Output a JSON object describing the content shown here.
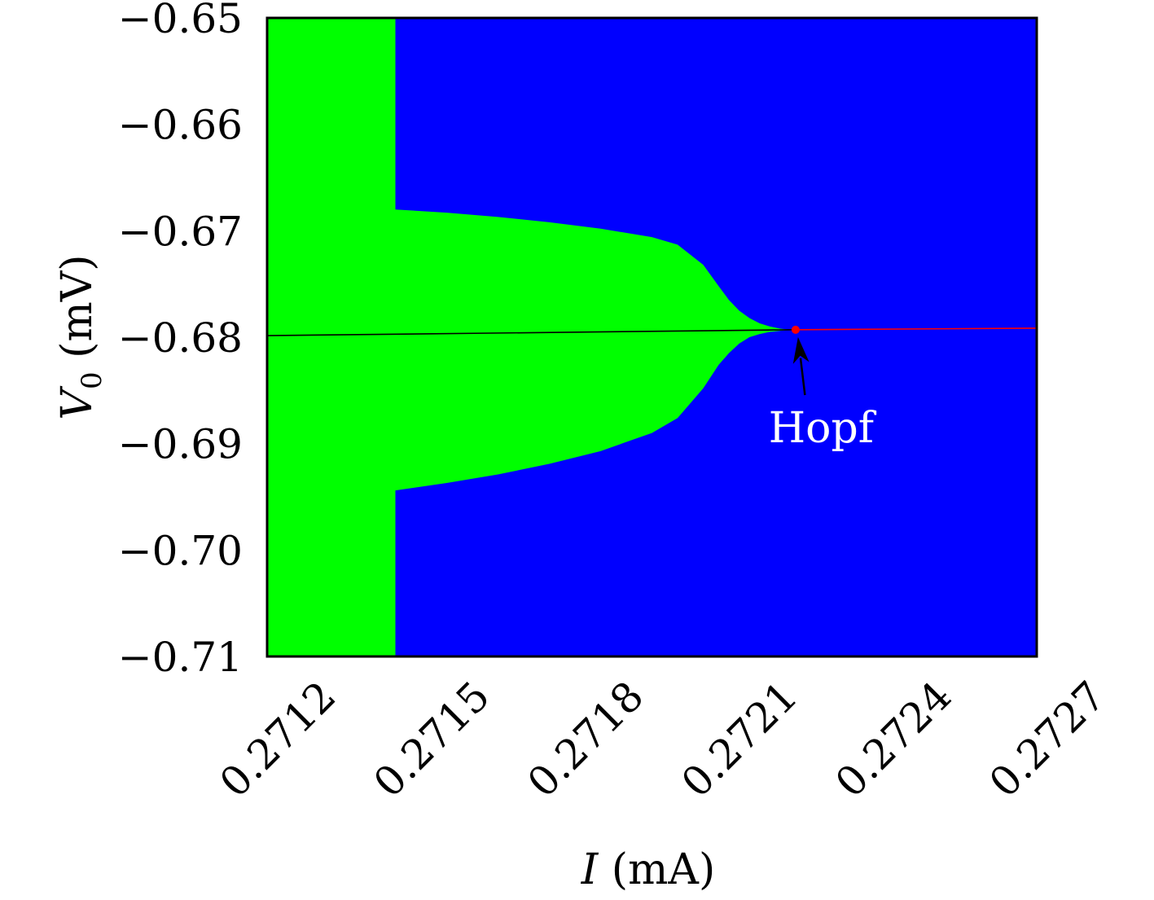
{
  "chart_data": {
    "type": "heatmap",
    "title": "",
    "xlabel": {
      "var": "I",
      "unit": " (mA)"
    },
    "ylabel": {
      "var": "V",
      "sub": "0",
      "unit": " (mV)"
    },
    "xlim": [
      0.2711,
      0.2726
    ],
    "ylim": [
      -0.71,
      -0.65
    ],
    "x_ticks": [
      0.2712,
      0.2715,
      0.2718,
      0.2721,
      0.2724,
      0.2727
    ],
    "x_tick_labels": [
      "0.2712",
      "0.2715",
      "0.2718",
      "0.2721",
      "0.2724",
      "0.2727"
    ],
    "y_ticks": [
      -0.65,
      -0.66,
      -0.67,
      -0.68,
      -0.69,
      -0.7,
      -0.71
    ],
    "y_tick_labels": [
      "−0.65",
      "−0.66",
      "−0.67",
      "−0.68",
      "−0.69",
      "−0.70",
      "−0.71"
    ],
    "grid": false,
    "colors": {
      "background": "#0000ff",
      "region": "#00ff00",
      "stable_branch": "#000000",
      "unstable_branch": "#ff0000",
      "annotation_text": "#ffffff"
    },
    "region_full_strip_x": [
      0.2711,
      0.27135
    ],
    "region_boundary": {
      "x": [
        0.27135,
        0.27145,
        0.27155,
        0.27165,
        0.27175,
        0.27185,
        0.2719,
        0.27195,
        0.27198,
        0.272,
        0.27202,
        0.27204,
        0.27206,
        0.27208,
        0.2721,
        0.27212
      ],
      "upper": [
        -0.668,
        -0.6683,
        -0.6687,
        -0.6692,
        -0.6698,
        -0.6706,
        -0.6713,
        -0.6732,
        -0.6752,
        -0.6765,
        -0.6775,
        -0.6782,
        -0.6787,
        -0.679,
        -0.6792,
        -0.6793
      ],
      "lower": [
        -0.6944,
        -0.6937,
        -0.6929,
        -0.6919,
        -0.6907,
        -0.689,
        -0.6876,
        -0.6848,
        -0.6826,
        -0.6815,
        -0.6806,
        -0.68,
        -0.6797,
        -0.6795,
        -0.6794,
        -0.6793
      ]
    },
    "series": [
      {
        "x": [
          0.2711,
          0.27213
        ],
        "y": [
          -0.67985,
          -0.6793
        ],
        "color": "#000000"
      },
      {
        "x": [
          0.27213,
          0.2726
        ],
        "y": [
          -0.6793,
          -0.67915
        ],
        "color": "#ff0000"
      }
    ],
    "hopf_point": {
      "x": 0.27213,
      "y": -0.6793,
      "color": "#ff0000"
    },
    "annotation": {
      "text": "Hopf",
      "x": 0.27218,
      "y": -0.6885,
      "arrow_to": [
        0.27213,
        -0.6793
      ]
    }
  }
}
